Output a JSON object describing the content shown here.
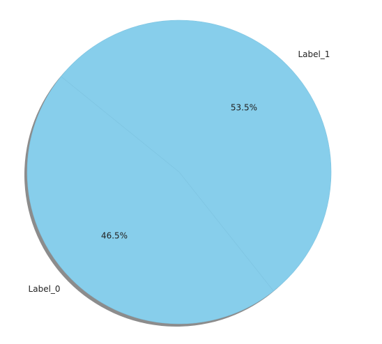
{
  "chart_data": {
    "type": "pie",
    "slices": [
      {
        "label": "Label_0",
        "value": 46.5,
        "pct_label": "46.5%"
      },
      {
        "label": "Label_1",
        "value": 53.5,
        "pct_label": "53.5%"
      }
    ],
    "shadow": true,
    "colors": {
      "slice": "#87ceeb",
      "shadow": "#8c8c8c",
      "edge": "#7ec3e0"
    }
  }
}
